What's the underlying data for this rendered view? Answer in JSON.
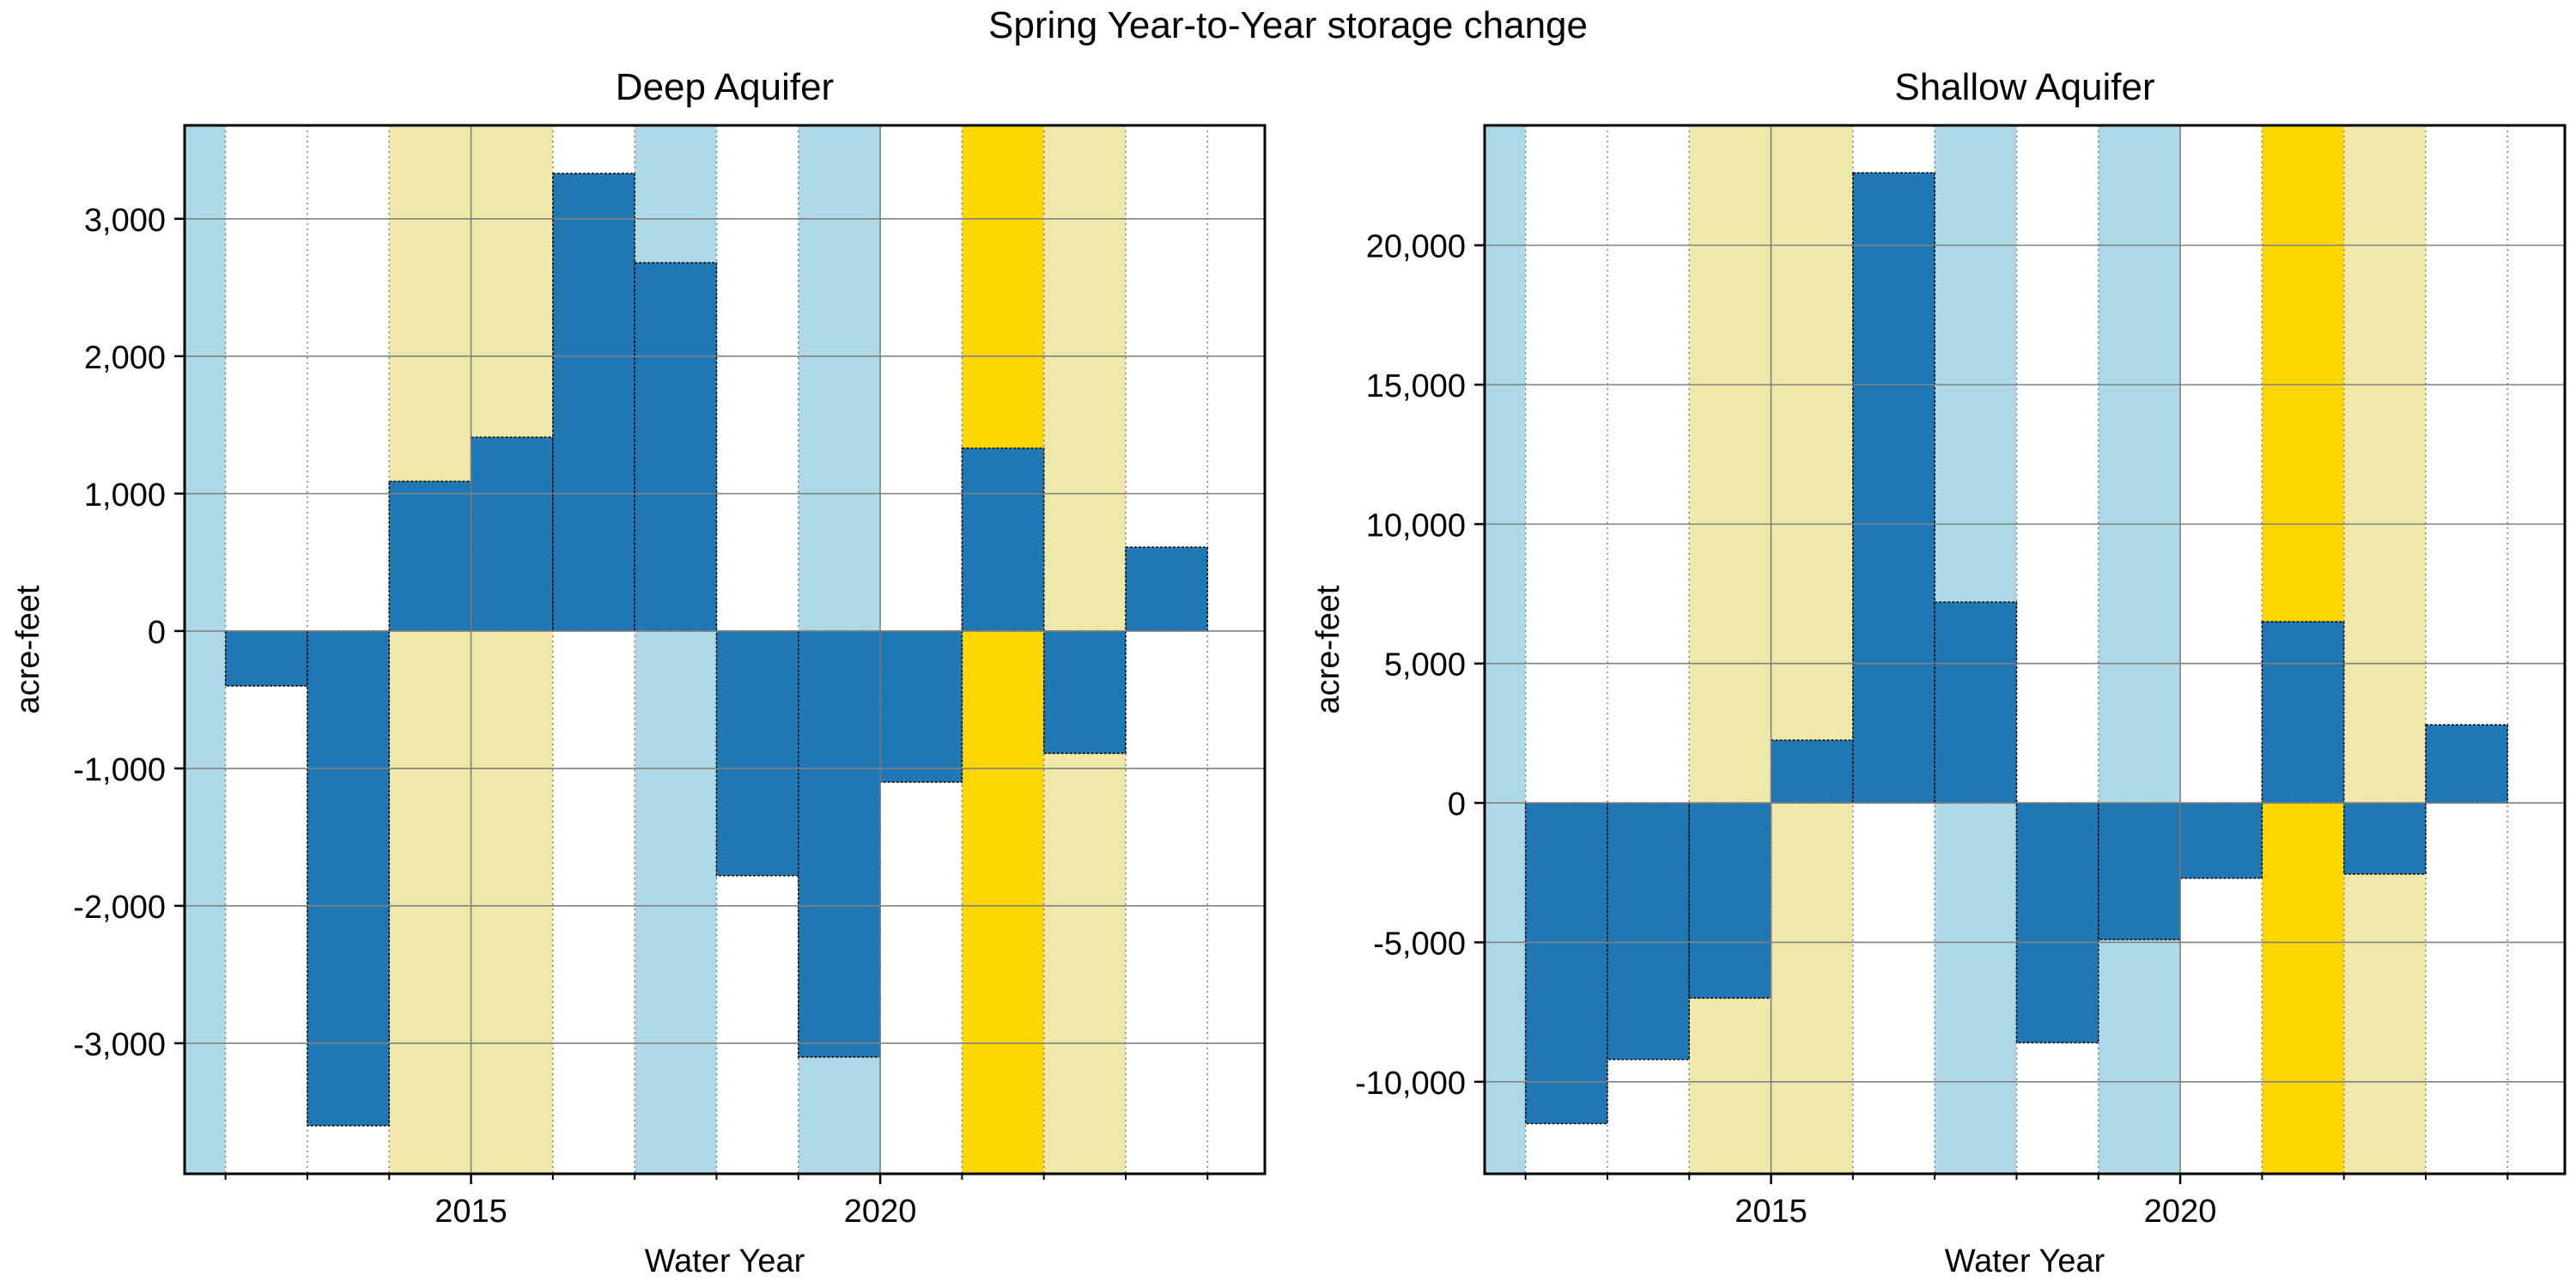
{
  "suptitle": "Spring Year-to-Year storage change",
  "colors": {
    "bar": "#1f77b4",
    "wet": "#add8e6",
    "dry": "#eee8aa",
    "critical": "#ffd700",
    "grid": "#808080"
  },
  "chart_data": [
    {
      "type": "bar",
      "title": "Deep Aquifer",
      "xlabel": "Water Year",
      "ylabel": "acre-feet",
      "xlim": [
        2011.5,
        2024.7
      ],
      "ylim": [
        -3950,
        3680
      ],
      "xticks": [
        2015,
        2020
      ],
      "yticks": [
        -3000,
        -2000,
        -1000,
        0,
        1000,
        2000,
        3000
      ],
      "ytick_labels": [
        "-3,000",
        "-2,000",
        "-1,000",
        "0",
        "1,000",
        "2,000",
        "3,000"
      ],
      "years": [
        2012,
        2013,
        2014,
        2015,
        2016,
        2017,
        2018,
        2019,
        2020,
        2021,
        2022,
        2023
      ],
      "values": [
        -400,
        -3600,
        1090,
        1410,
        3330,
        2680,
        -1780,
        -3100,
        -1100,
        1330,
        -890,
        610
      ],
      "year_types": [
        {
          "year": 2011,
          "type": "wet"
        },
        {
          "year": 2014,
          "type": "dry"
        },
        {
          "year": 2015,
          "type": "dry"
        },
        {
          "year": 2017,
          "type": "wet"
        },
        {
          "year": 2019,
          "type": "wet"
        },
        {
          "year": 2021,
          "type": "critical"
        },
        {
          "year": 2022,
          "type": "dry"
        }
      ]
    },
    {
      "type": "bar",
      "title": "Shallow  Aquifer",
      "xlabel": "Water Year",
      "ylabel": "acre-feet",
      "xlim": [
        2011.5,
        2024.7
      ],
      "ylim": [
        -13300,
        24300
      ],
      "xticks": [
        2015,
        2020
      ],
      "yticks": [
        -10000,
        -5000,
        0,
        5000,
        10000,
        15000,
        20000
      ],
      "ytick_labels": [
        "-10,000",
        "-5,000",
        "0",
        "5,000",
        "10,000",
        "15,000",
        "20,000"
      ],
      "years": [
        2012,
        2013,
        2014,
        2015,
        2016,
        2017,
        2018,
        2019,
        2020,
        2021,
        2022,
        2023
      ],
      "values": [
        -11500,
        -9200,
        -7000,
        2250,
        22600,
        7200,
        -8600,
        -4900,
        -2700,
        6500,
        -2550,
        2800
      ],
      "year_types": [
        {
          "year": 2011,
          "type": "wet"
        },
        {
          "year": 2014,
          "type": "dry"
        },
        {
          "year": 2015,
          "type": "dry"
        },
        {
          "year": 2017,
          "type": "wet"
        },
        {
          "year": 2019,
          "type": "wet"
        },
        {
          "year": 2021,
          "type": "critical"
        },
        {
          "year": 2022,
          "type": "dry"
        }
      ]
    }
  ]
}
